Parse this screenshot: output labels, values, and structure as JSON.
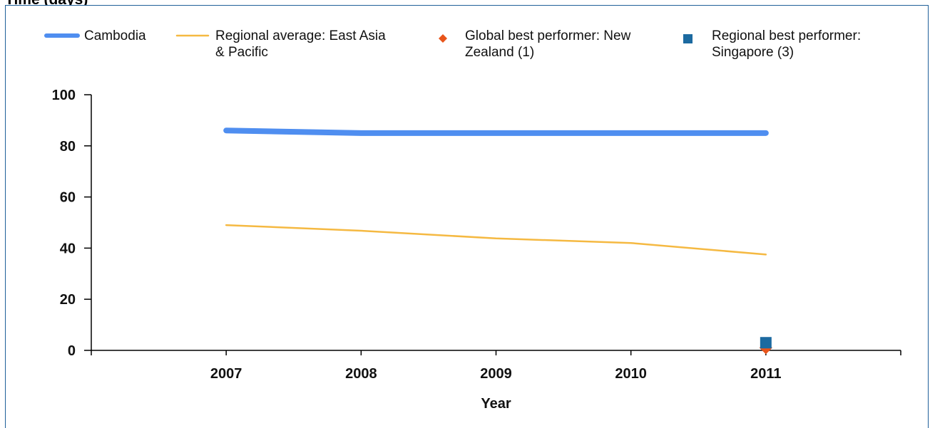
{
  "chart_data": {
    "type": "line",
    "title": "Time (days)",
    "xlabel": "Year",
    "ylabel": "",
    "x": [
      2007,
      2008,
      2009,
      2010,
      2011
    ],
    "xlim": [
      2006,
      2012
    ],
    "ylim": [
      0,
      100
    ],
    "y_ticks": [
      0,
      20,
      40,
      60,
      80,
      100
    ],
    "grid": false,
    "legend_position": "top",
    "series": [
      {
        "name": "Cambodia",
        "type": "line",
        "color": "#4f8ef0",
        "values": [
          86,
          85,
          85,
          85,
          85
        ]
      },
      {
        "name": "Regional average: East Asia & Pacific",
        "type": "line",
        "color": "#f5b942",
        "values": [
          49,
          46.8,
          43.8,
          42,
          37.5
        ]
      },
      {
        "name": "Global best performer: New Zealand (1)",
        "type": "marker",
        "marker": "diamond",
        "color": "#e8541a",
        "points": [
          {
            "x": 2011,
            "y": 1
          }
        ]
      },
      {
        "name": "Regional best performer: Singapore (3)",
        "type": "marker",
        "marker": "square",
        "color": "#1c6aa0",
        "points": [
          {
            "x": 2011,
            "y": 3
          }
        ]
      }
    ]
  }
}
